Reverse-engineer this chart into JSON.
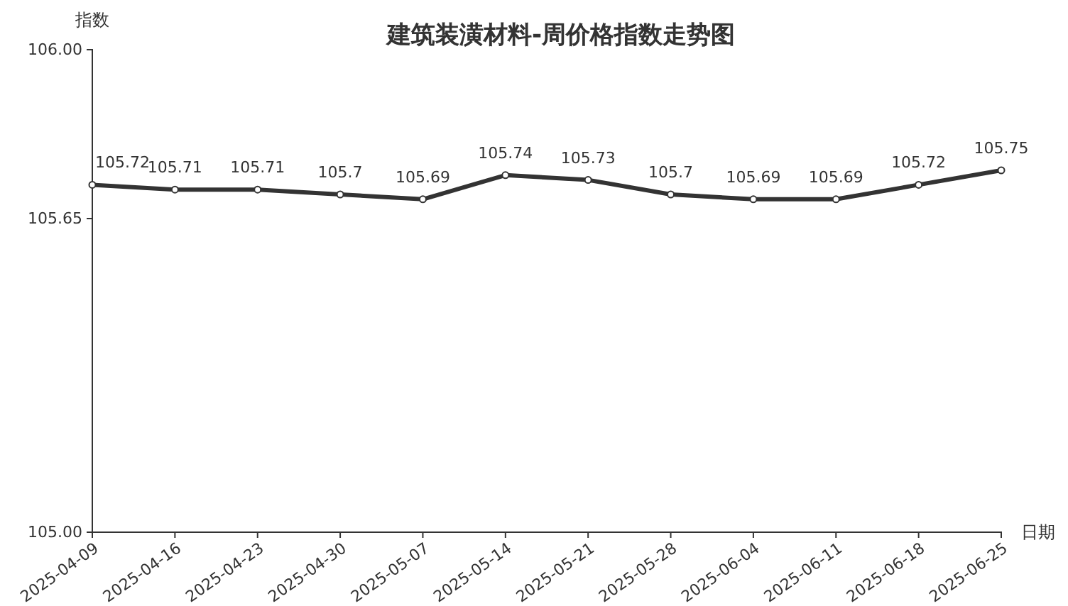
{
  "chart_data": {
    "type": "line",
    "title": "建筑装潢材料-周价格指数走势图",
    "xlabel": "日期",
    "ylabel": "指数",
    "categories": [
      "2025-04-09",
      "2025-04-16",
      "2025-04-23",
      "2025-04-30",
      "2025-05-07",
      "2025-05-14",
      "2025-05-21",
      "2025-05-28",
      "2025-06-04",
      "2025-06-11",
      "2025-06-18",
      "2025-06-25"
    ],
    "series": [
      {
        "color": "#333333",
        "values": [
          105.72,
          105.71,
          105.71,
          105.7,
          105.69,
          105.74,
          105.73,
          105.7,
          105.69,
          105.69,
          105.72,
          105.75
        ]
      }
    ],
    "ylim": [
      105,
      106
    ],
    "yticks": [
      {
        "value": 105,
        "label": "105.00"
      },
      105.65,
      {
        "value": 106,
        "label": "106.00"
      }
    ],
    "data_labels": true,
    "marker": "circle",
    "line_style": "solid",
    "grid": false
  }
}
